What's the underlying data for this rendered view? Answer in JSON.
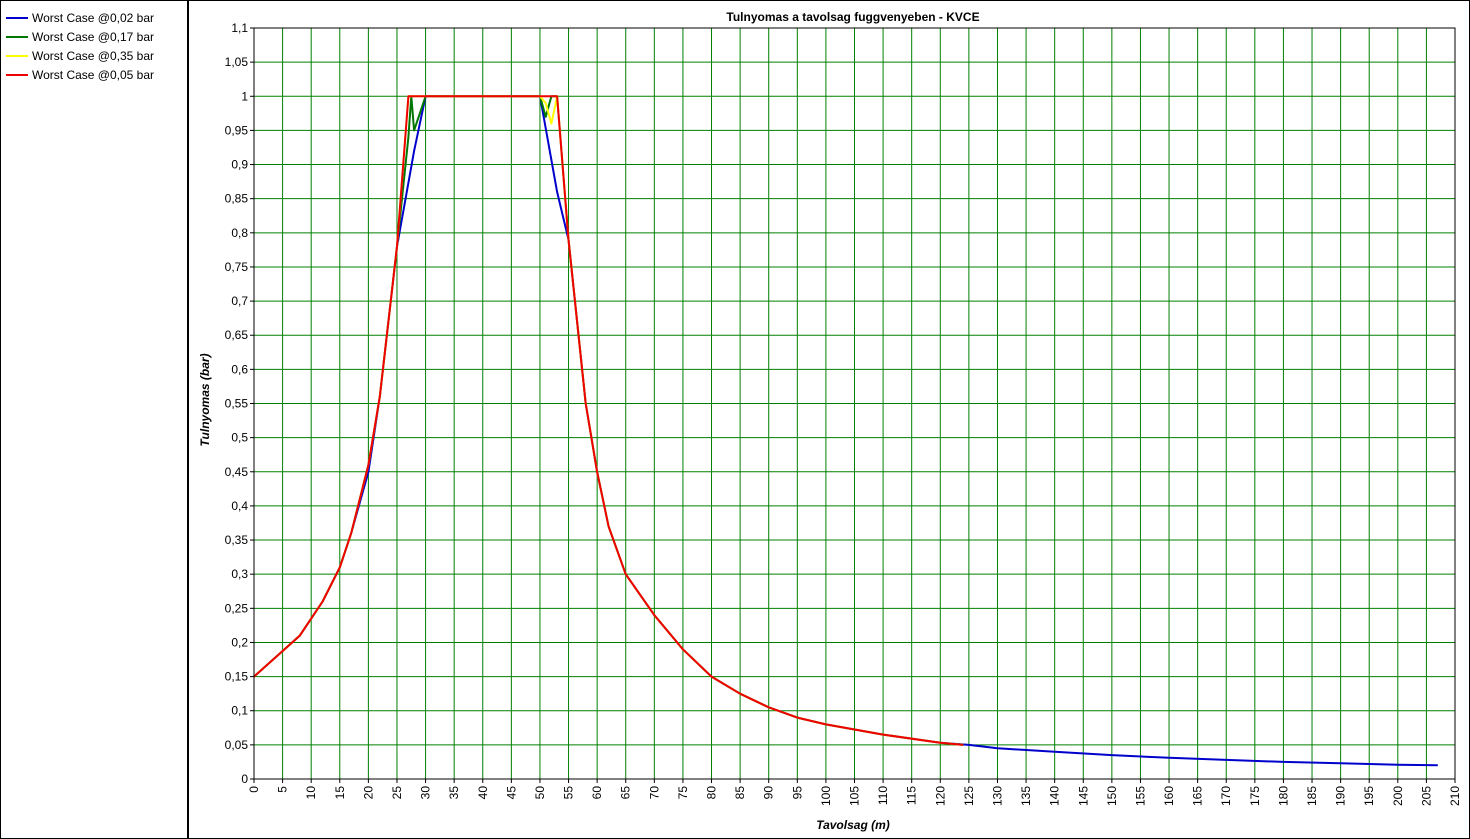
{
  "legend": {
    "items": [
      {
        "label": "Worst Case @0,02 bar",
        "color": "#0000cc"
      },
      {
        "label": "Worst Case @0,17 bar",
        "color": "#007700"
      },
      {
        "label": "Worst Case @0,35 bar",
        "color": "#ffff00"
      },
      {
        "label": "Worst Case @0,05 bar",
        "color": "#ee0000"
      }
    ]
  },
  "chart_data": {
    "type": "line",
    "title": "Tulnyomas a tavolsag fuggvenyeben - KVCE",
    "xlabel": "Tavolsag (m)",
    "ylabel": "Tulnyomas (bar)",
    "xlim": [
      0,
      210
    ],
    "ylim": [
      0,
      1.1
    ],
    "x_ticks": [
      0,
      5,
      10,
      15,
      20,
      25,
      30,
      35,
      40,
      45,
      50,
      55,
      60,
      65,
      70,
      75,
      80,
      85,
      90,
      95,
      100,
      105,
      110,
      115,
      120,
      125,
      130,
      135,
      140,
      145,
      150,
      155,
      160,
      165,
      170,
      175,
      180,
      185,
      190,
      195,
      200,
      205,
      210
    ],
    "y_ticks": [
      0,
      0.05,
      0.1,
      0.15,
      0.2,
      0.25,
      0.3,
      0.35,
      0.4,
      0.45,
      0.5,
      0.55,
      0.6,
      0.65,
      0.7,
      0.75,
      0.8,
      0.85,
      0.9,
      0.95,
      1,
      1.05,
      1.1
    ],
    "decimal_separator": ",",
    "grid": true,
    "grid_color": "#008000",
    "legend_position": "left",
    "series": [
      {
        "name": "Worst Case @0,02 bar",
        "color": "#0000cc",
        "x": [
          0,
          4,
          8,
          12,
          15,
          17,
          20,
          22,
          25,
          28,
          30,
          35,
          40,
          45,
          50,
          53,
          55,
          58,
          60,
          62,
          65,
          70,
          75,
          80,
          85,
          90,
          95,
          100,
          110,
          120,
          125,
          130,
          140,
          150,
          160,
          170,
          180,
          190,
          200,
          207
        ],
        "y": [
          0.15,
          0.18,
          0.21,
          0.26,
          0.31,
          0.36,
          0.45,
          0.56,
          0.78,
          0.92,
          1,
          1,
          1,
          1,
          1,
          0.86,
          0.79,
          0.55,
          0.45,
          0.37,
          0.3,
          0.24,
          0.19,
          0.15,
          0.125,
          0.105,
          0.09,
          0.08,
          0.065,
          0.053,
          0.05,
          0.045,
          0.04,
          0.035,
          0.031,
          0.028,
          0.025,
          0.023,
          0.021,
          0.02
        ]
      },
      {
        "name": "Worst Case @0,17 bar",
        "color": "#007700",
        "x": [
          0,
          4,
          8,
          12,
          15,
          17,
          20,
          22,
          25,
          27,
          27.5,
          28,
          30,
          35,
          40,
          45,
          50,
          51,
          52,
          53,
          55,
          58,
          60,
          62,
          65,
          70,
          75,
          80,
          85,
          90,
          95,
          100,
          110,
          120,
          124
        ],
        "y": [
          0.15,
          0.18,
          0.21,
          0.26,
          0.31,
          0.36,
          0.46,
          0.56,
          0.78,
          0.94,
          1,
          0.95,
          1,
          1,
          1,
          1,
          1,
          0.97,
          1,
          1,
          0.79,
          0.55,
          0.45,
          0.37,
          0.3,
          0.24,
          0.19,
          0.15,
          0.125,
          0.105,
          0.09,
          0.08,
          0.065,
          0.053,
          0.05
        ]
      },
      {
        "name": "Worst Case @0,35 bar",
        "color": "#ffff00",
        "x": [
          0,
          4,
          8,
          12,
          15,
          17,
          20,
          22,
          25,
          27,
          28,
          30,
          35,
          40,
          45,
          50,
          51,
          52,
          53,
          55,
          58,
          60,
          62,
          65,
          70,
          75,
          80,
          85,
          90,
          95,
          100,
          110,
          120,
          124
        ],
        "y": [
          0.15,
          0.18,
          0.21,
          0.26,
          0.31,
          0.36,
          0.46,
          0.56,
          0.78,
          1,
          1,
          1,
          1,
          1,
          1,
          1,
          0.99,
          0.96,
          1,
          0.79,
          0.55,
          0.45,
          0.37,
          0.3,
          0.24,
          0.19,
          0.15,
          0.125,
          0.105,
          0.09,
          0.08,
          0.065,
          0.053,
          0.05
        ]
      },
      {
        "name": "Worst Case @0,05 bar",
        "color": "#ee0000",
        "x": [
          0,
          4,
          8,
          12,
          15,
          17,
          20,
          22,
          25,
          27,
          28,
          30,
          35,
          40,
          45,
          50,
          53,
          55,
          58,
          60,
          62,
          65,
          70,
          75,
          80,
          85,
          90,
          95,
          100,
          110,
          120,
          124
        ],
        "y": [
          0.15,
          0.18,
          0.21,
          0.26,
          0.31,
          0.36,
          0.46,
          0.56,
          0.78,
          1,
          1,
          1,
          1,
          1,
          1,
          1,
          1,
          0.79,
          0.55,
          0.45,
          0.37,
          0.3,
          0.24,
          0.19,
          0.15,
          0.125,
          0.105,
          0.09,
          0.08,
          0.065,
          0.053,
          0.05
        ]
      }
    ]
  }
}
